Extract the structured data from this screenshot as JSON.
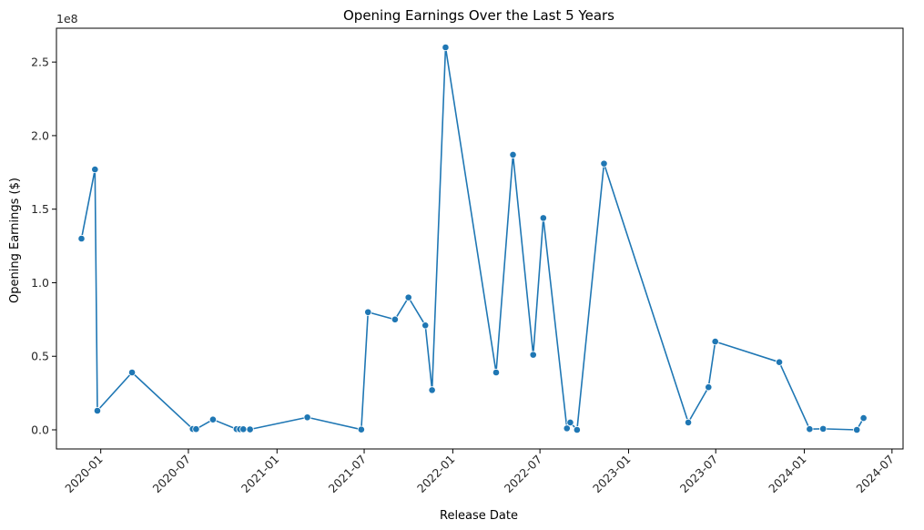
{
  "chart_data": {
    "type": "line",
    "title": "Opening Earnings Over the Last 5 Years",
    "xlabel": "Release Date",
    "ylabel": "Opening Earnings ($)",
    "y_offset_text": "1e8",
    "y_scale": 100000000,
    "ylim": [
      -13000000,
      273000000
    ],
    "xlim": [
      "2019-10-01",
      "2024-07-24"
    ],
    "grid": false,
    "legend": "none",
    "line_color": "#1f77b4",
    "marker": "circle",
    "y_ticks": [
      {
        "value": 0,
        "label": "0.0"
      },
      {
        "value": 50000000,
        "label": "0.5"
      },
      {
        "value": 100000000,
        "label": "1.0"
      },
      {
        "value": 150000000,
        "label": "1.5"
      },
      {
        "value": 200000000,
        "label": "2.0"
      },
      {
        "value": 250000000,
        "label": "2.5"
      }
    ],
    "x_ticks": [
      {
        "date": "2020-01-01",
        "label": "2020-01"
      },
      {
        "date": "2020-07-01",
        "label": "2020-07"
      },
      {
        "date": "2021-01-01",
        "label": "2021-01"
      },
      {
        "date": "2021-07-01",
        "label": "2021-07"
      },
      {
        "date": "2022-01-01",
        "label": "2022-01"
      },
      {
        "date": "2022-07-01",
        "label": "2022-07"
      },
      {
        "date": "2023-01-01",
        "label": "2023-01"
      },
      {
        "date": "2023-07-01",
        "label": "2023-07"
      },
      {
        "date": "2024-01-01",
        "label": "2024-01"
      },
      {
        "date": "2024-07-01",
        "label": "2024-07"
      }
    ],
    "points": [
      {
        "x": "2019-11-22",
        "y": 130000000
      },
      {
        "x": "2019-12-20",
        "y": 177000000
      },
      {
        "x": "2019-12-25",
        "y": 13000000
      },
      {
        "x": "2020-03-06",
        "y": 39000000
      },
      {
        "x": "2020-07-10",
        "y": 600000
      },
      {
        "x": "2020-07-17",
        "y": 500000
      },
      {
        "x": "2020-08-21",
        "y": 7000000
      },
      {
        "x": "2020-10-09",
        "y": 500000
      },
      {
        "x": "2020-10-16",
        "y": 400000
      },
      {
        "x": "2020-10-23",
        "y": 400000
      },
      {
        "x": "2020-11-06",
        "y": 300000
      },
      {
        "x": "2021-03-05",
        "y": 8500000
      },
      {
        "x": "2021-06-25",
        "y": 200000
      },
      {
        "x": "2021-07-09",
        "y": 80000000
      },
      {
        "x": "2021-09-03",
        "y": 75000000
      },
      {
        "x": "2021-10-01",
        "y": 90000000
      },
      {
        "x": "2021-11-05",
        "y": 71000000
      },
      {
        "x": "2021-11-19",
        "y": 27000000
      },
      {
        "x": "2021-12-17",
        "y": 260000000
      },
      {
        "x": "2022-04-01",
        "y": 39000000
      },
      {
        "x": "2022-05-06",
        "y": 187000000
      },
      {
        "x": "2022-06-17",
        "y": 51000000
      },
      {
        "x": "2022-07-08",
        "y": 144000000
      },
      {
        "x": "2022-08-26",
        "y": 1000000
      },
      {
        "x": "2022-09-02",
        "y": 5000000
      },
      {
        "x": "2022-09-16",
        "y": 0
      },
      {
        "x": "2022-11-11",
        "y": 181000000
      },
      {
        "x": "2023-05-05",
        "y": 5000000
      },
      {
        "x": "2023-06-16",
        "y": 29000000
      },
      {
        "x": "2023-06-30",
        "y": 60000000
      },
      {
        "x": "2023-11-10",
        "y": 46000000
      },
      {
        "x": "2024-01-12",
        "y": 500000
      },
      {
        "x": "2024-02-09",
        "y": 700000
      },
      {
        "x": "2024-04-19",
        "y": 0
      },
      {
        "x": "2024-05-03",
        "y": 8000000
      }
    ]
  }
}
